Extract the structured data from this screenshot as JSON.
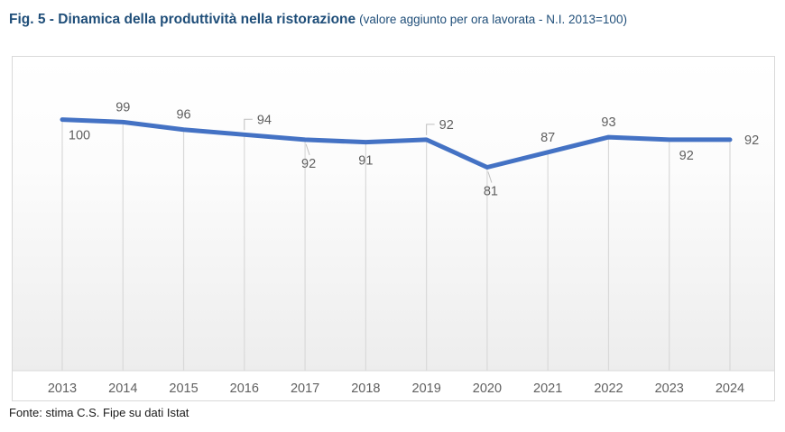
{
  "header": {
    "main": "Fig. 5 - Dinamica della produttività nella ristorazione",
    "sub": "(valore aggiunto per ora lavorata - N.I. 2013=100)"
  },
  "footer": {
    "source": "Fonte: stima C.S. Fipe su dati Istat"
  },
  "colors": {
    "title": "#1F4E79",
    "line": "#4472C4",
    "label": "#606060",
    "grid": "#d9d9d9",
    "leader": "#bfbfbf"
  },
  "chart_data": {
    "type": "line",
    "title": "Fig. 5 - Dinamica della produttività nella ristorazione",
    "subtitle": "valore aggiunto per ora lavorata - N.I. 2013=100",
    "categories": [
      "2013",
      "2014",
      "2015",
      "2016",
      "2017",
      "2018",
      "2019",
      "2020",
      "2021",
      "2022",
      "2023",
      "2024"
    ],
    "values": [
      100,
      99,
      96,
      94,
      92,
      91,
      92,
      81,
      87,
      93,
      92,
      92
    ],
    "xlabel": "",
    "ylabel": "",
    "ylim": [
      0,
      125
    ],
    "y_axis_visible": false,
    "grid": "vertical-drop-lines",
    "legend": "none",
    "data_labels": true,
    "label_positions": [
      "below-right",
      "above",
      "above",
      "leader-above",
      "leader-below",
      "below",
      "leader-above",
      "leader-below",
      "above",
      "above",
      "below-right",
      "right"
    ]
  }
}
